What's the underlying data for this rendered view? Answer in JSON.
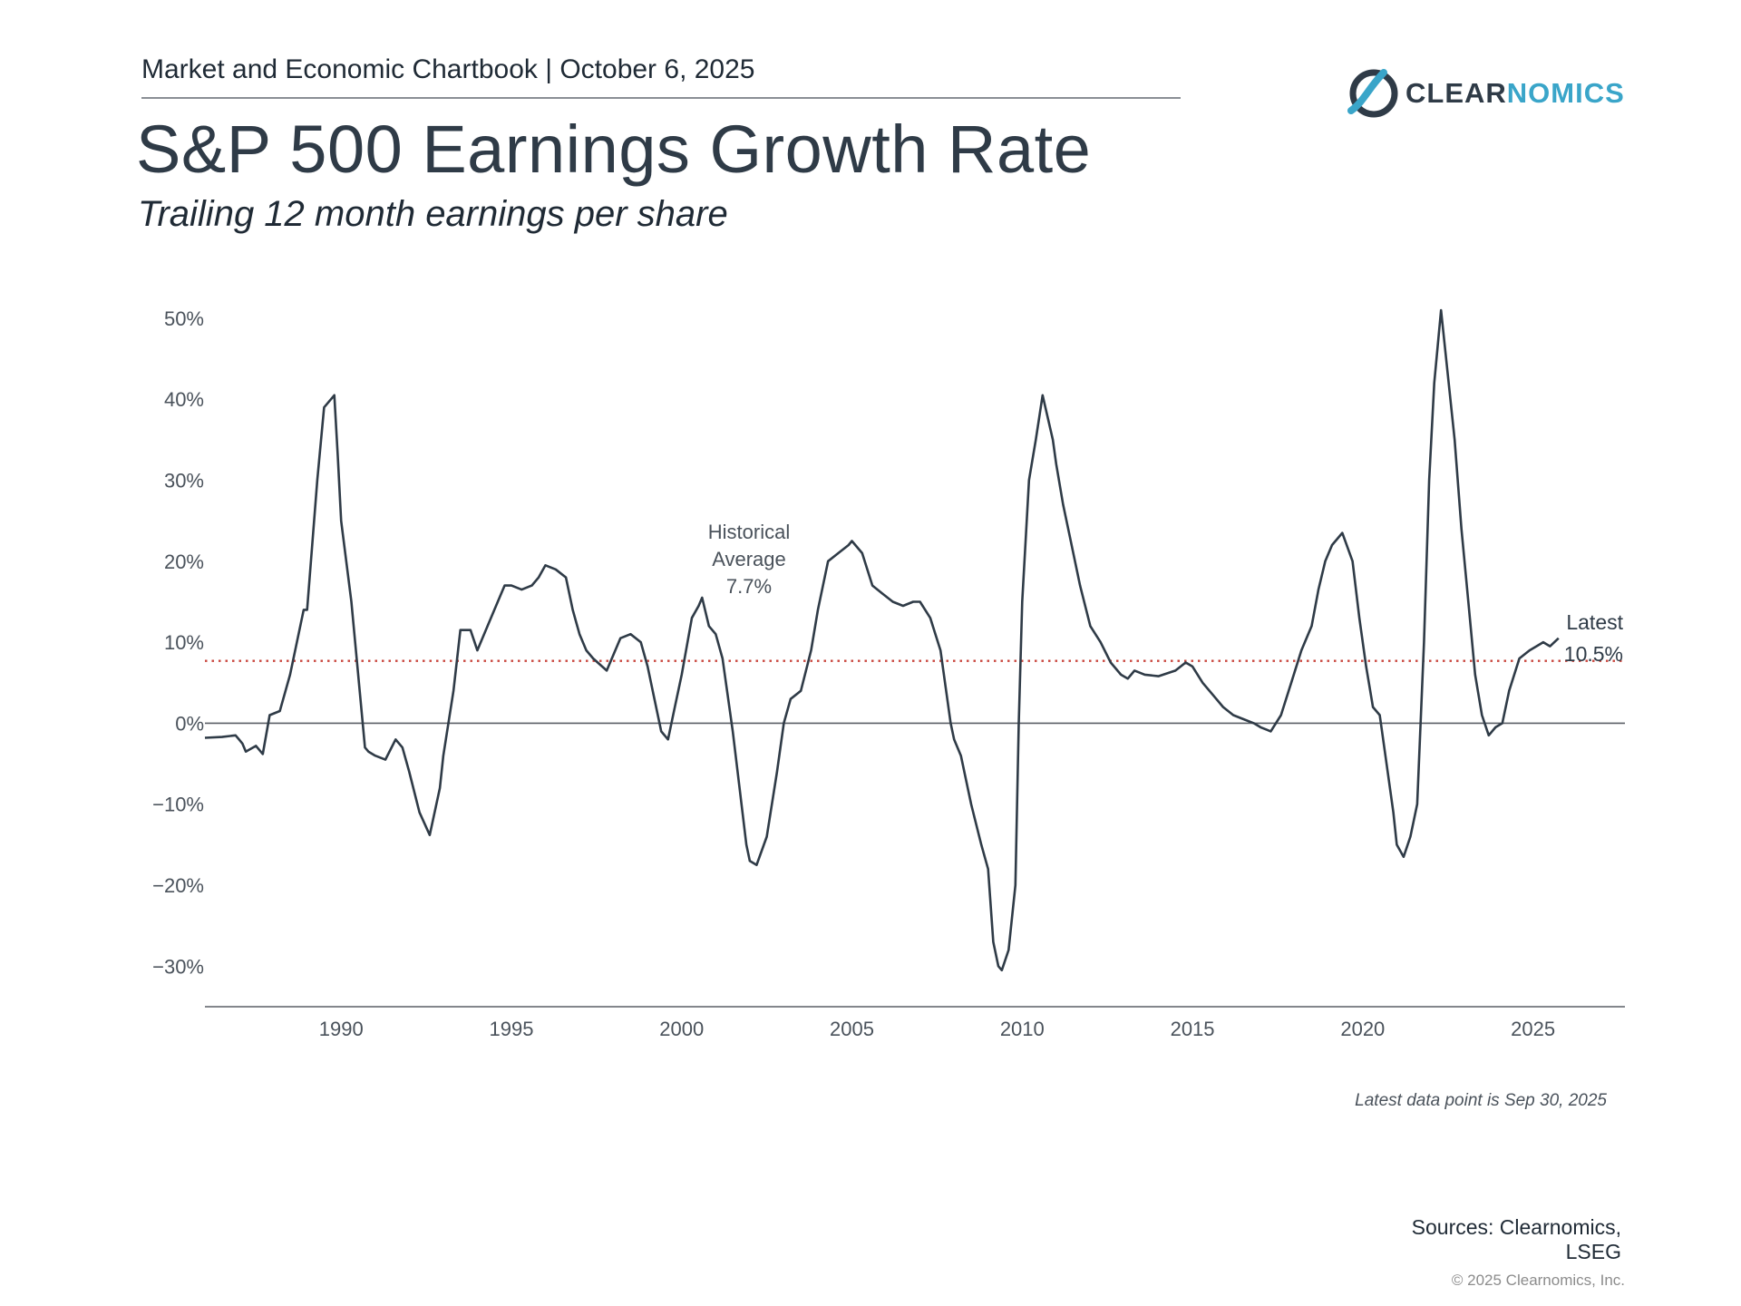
{
  "header": {
    "chartbook": "Market and Economic Chartbook | October 6, 2025",
    "title": "S&P 500 Earnings Growth Rate",
    "subtitle": "Trailing 12 month earnings per share"
  },
  "logo": {
    "part1": "CLEAR",
    "part2": "NOMICS",
    "icon": "clearnomics-swoosh-icon"
  },
  "colors": {
    "series": "#2f3b47",
    "average": "#c9443c",
    "text": "#2f3b47",
    "accent": "#3aa5c9"
  },
  "chart_data": {
    "type": "line",
    "title": "S&P 500 Earnings Growth Rate",
    "subtitle": "Trailing 12 month earnings per share",
    "xlim": [
      1986,
      2027.7
    ],
    "ylim": [
      -35,
      51
    ],
    "y_ticks": [
      50,
      40,
      30,
      20,
      10,
      0,
      -10,
      -20,
      -30
    ],
    "y_tick_labels": [
      "50%",
      "40%",
      "30%",
      "20%",
      "10%",
      "0%",
      "−10%",
      "−20%",
      "−30%"
    ],
    "x_ticks": [
      1990,
      1995,
      2000,
      2005,
      2010,
      2015,
      2020,
      2025
    ],
    "x_tick_labels": [
      "1990",
      "1995",
      "2000",
      "2005",
      "2010",
      "2015",
      "2020",
      "2025"
    ],
    "grid": false,
    "series": [
      {
        "x": [
          1986.0,
          1986.5,
          1986.9,
          1987.0,
          1987.1,
          1987.2,
          1987.5,
          1987.7,
          1987.9,
          1988.2,
          1988.5,
          1988.7,
          1988.9,
          1989.0,
          1989.15,
          1989.3,
          1989.5,
          1989.8,
          1989.9,
          1990.0,
          1990.3,
          1990.7,
          1990.8,
          1991.0,
          1991.3,
          1991.6,
          1991.8,
          1992.0,
          1992.3,
          1992.6,
          1992.9,
          1993.0,
          1993.3,
          1993.5,
          1993.8,
          1994.0,
          1994.2,
          1994.5,
          1994.8,
          1995.0,
          1995.3,
          1995.6,
          1995.8,
          1996.0,
          1996.3,
          1996.6,
          1996.8,
          1997.0,
          1997.2,
          1997.4,
          1997.8,
          1998.2,
          1998.5,
          1998.8,
          1999.0,
          1999.2,
          1999.4,
          1999.6,
          1999.8,
          2000.0,
          2000.3,
          2000.5,
          2000.6,
          2000.8,
          2001.0,
          2001.2,
          2001.5,
          2001.7,
          2001.9,
          2002.0,
          2002.2,
          2002.5,
          2002.8,
          2003.0,
          2003.2,
          2003.5,
          2003.8,
          2004.0,
          2004.3,
          2004.6,
          2004.9,
          2005.0,
          2005.3,
          2005.6,
          2005.9,
          2006.2,
          2006.5,
          2006.8,
          2007.0,
          2007.3,
          2007.6,
          2007.9,
          2008.0,
          2008.2,
          2008.5,
          2008.8,
          2009.0,
          2009.15,
          2009.3,
          2009.4,
          2009.6,
          2009.8,
          2009.9,
          2010.0,
          2010.2,
          2010.4,
          2010.6,
          2010.9,
          2011.0,
          2011.2,
          2011.4,
          2011.7,
          2012.0,
          2012.3,
          2012.6,
          2012.9,
          2013.1,
          2013.3,
          2013.6,
          2014.0,
          2014.5,
          2014.8,
          2015.0,
          2015.3,
          2015.6,
          2015.9,
          2016.2,
          2016.5,
          2016.8,
          2017.0,
          2017.3,
          2017.6,
          2017.9,
          2018.2,
          2018.5,
          2018.7,
          2018.9,
          2019.1,
          2019.4,
          2019.7,
          2019.9,
          2020.1,
          2020.3,
          2020.5,
          2020.7,
          2020.9,
          2021.0,
          2021.2,
          2021.4,
          2021.6,
          2021.8,
          2021.95,
          2022.1,
          2022.3,
          2022.5,
          2022.7,
          2022.9,
          2023.1,
          2023.3,
          2023.5,
          2023.7,
          2023.9,
          2024.1,
          2024.3,
          2024.6,
          2024.9,
          2025.1,
          2025.3,
          2025.5,
          2025.75
        ],
        "y": [
          -1.8,
          -1.7,
          -1.5,
          -2.0,
          -2.5,
          -3.5,
          -2.8,
          -3.8,
          1.0,
          1.5,
          6.0,
          10.0,
          14.0,
          14.0,
          22.0,
          30.0,
          39.0,
          40.5,
          33.0,
          25.0,
          15.0,
          -3.0,
          -3.5,
          -4.0,
          -4.5,
          -2.0,
          -3.0,
          -6.0,
          -11.0,
          -13.8,
          -8.0,
          -4.0,
          4.0,
          11.5,
          11.5,
          9.0,
          11.0,
          14.0,
          17.0,
          17.0,
          16.5,
          17.0,
          18.0,
          19.5,
          19.0,
          18.0,
          14.0,
          11.0,
          9.0,
          8.0,
          6.5,
          10.5,
          11.0,
          10.0,
          7.0,
          3.0,
          -1.0,
          -2.0,
          2.0,
          6.0,
          13.0,
          14.5,
          15.5,
          12.0,
          11.0,
          8.0,
          -1.0,
          -8.0,
          -15.0,
          -17.0,
          -17.5,
          -14.0,
          -6.0,
          0.0,
          3.0,
          4.0,
          9.0,
          14.0,
          20.0,
          21.0,
          22.0,
          22.5,
          21.0,
          17.0,
          16.0,
          15.0,
          14.5,
          15.0,
          15.0,
          13.0,
          9.0,
          0.0,
          -2.0,
          -4.0,
          -10.0,
          -15.0,
          -18.0,
          -27.0,
          -30.0,
          -30.5,
          -28.0,
          -20.0,
          0.0,
          15.0,
          30.0,
          35.0,
          40.5,
          35.0,
          32.0,
          27.0,
          23.0,
          17.0,
          12.0,
          10.0,
          7.5,
          6.0,
          5.5,
          6.5,
          6.0,
          5.8,
          6.5,
          7.5,
          7.0,
          5.0,
          3.5,
          2.0,
          1.0,
          0.5,
          0.0,
          -0.5,
          -1.0,
          1.0,
          5.0,
          9.0,
          12.0,
          16.5,
          20.0,
          22.0,
          23.5,
          20.0,
          13.0,
          7.0,
          2.0,
          1.0,
          -5.0,
          -11.0,
          -15.0,
          -16.5,
          -14.0,
          -10.0,
          10.0,
          30.0,
          42.0,
          51.0,
          43.0,
          35.0,
          24.0,
          15.0,
          6.0,
          1.0,
          -1.5,
          -0.5,
          0.0,
          4.0,
          8.0,
          9.0,
          9.5,
          10.0,
          9.5,
          10.5
        ]
      }
    ],
    "reference_line": {
      "y": 7.7,
      "style": "dotted"
    },
    "annotations": {
      "average_lines": [
        "Historical",
        "Average",
        "7.7%"
      ],
      "latest_lines": [
        "Latest",
        "10.5%"
      ],
      "latest_note": "Latest data point is Sep 30, 2025"
    }
  },
  "footer": {
    "sources_line1": "Sources: Clearnomics,",
    "sources_line2": "LSEG",
    "copyright": "© 2025 Clearnomics, Inc."
  }
}
